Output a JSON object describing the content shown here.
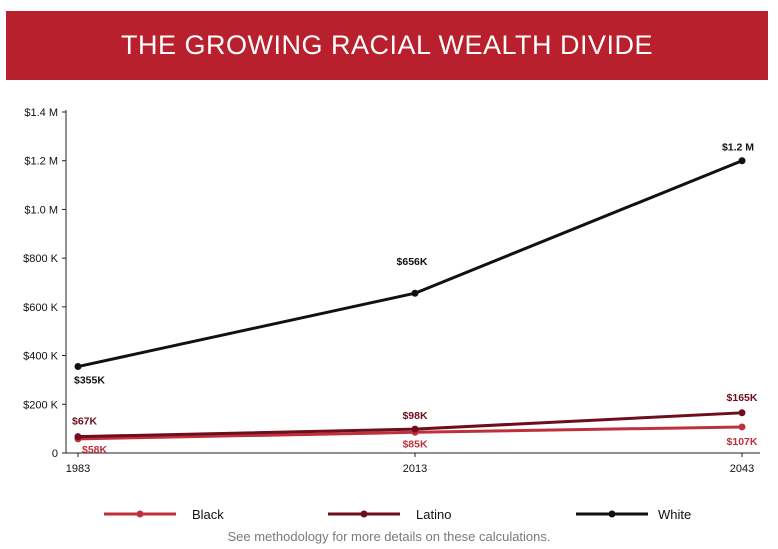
{
  "banner": {
    "title": "THE GROWING RACIAL WEALTH DIVIDE"
  },
  "footer": {
    "note": "See methodology for more details on these calculations."
  },
  "colors": {
    "banner": "#b8202e",
    "black_series": "#c0303c",
    "latino_series": "#6e0e1c",
    "white_series": "#111111"
  },
  "chart_data": {
    "type": "line",
    "title": "THE GROWING RACIAL WEALTH DIVIDE",
    "x": [
      "1983",
      "2013",
      "2043"
    ],
    "ylim": [
      0,
      1400000
    ],
    "yticks": [
      {
        "value": 0,
        "label": "0"
      },
      {
        "value": 200000,
        "label": "$200 K"
      },
      {
        "value": 400000,
        "label": "$400 K"
      },
      {
        "value": 600000,
        "label": "$600 K"
      },
      {
        "value": 800000,
        "label": "$800 K"
      },
      {
        "value": 1000000,
        "label": "$1.0 M"
      },
      {
        "value": 1200000,
        "label": "$1.2 M"
      },
      {
        "value": 1400000,
        "label": "$1.4 M"
      }
    ],
    "grid": false,
    "legend": "bottom",
    "series": [
      {
        "name": "Black",
        "color": "#c0303c",
        "values": [
          58000,
          85000,
          107000
        ],
        "labels": [
          "$58K",
          "$85K",
          "$107K"
        ]
      },
      {
        "name": "Latino",
        "color": "#6e0e1c",
        "values": [
          67000,
          98000,
          165000
        ],
        "labels": [
          "$67K",
          "$98K",
          "$165K"
        ]
      },
      {
        "name": "White",
        "color": "#111111",
        "values": [
          355000,
          656000,
          1200000
        ],
        "labels": [
          "$355K",
          "$656K",
          "$1.2 M"
        ]
      }
    ]
  }
}
